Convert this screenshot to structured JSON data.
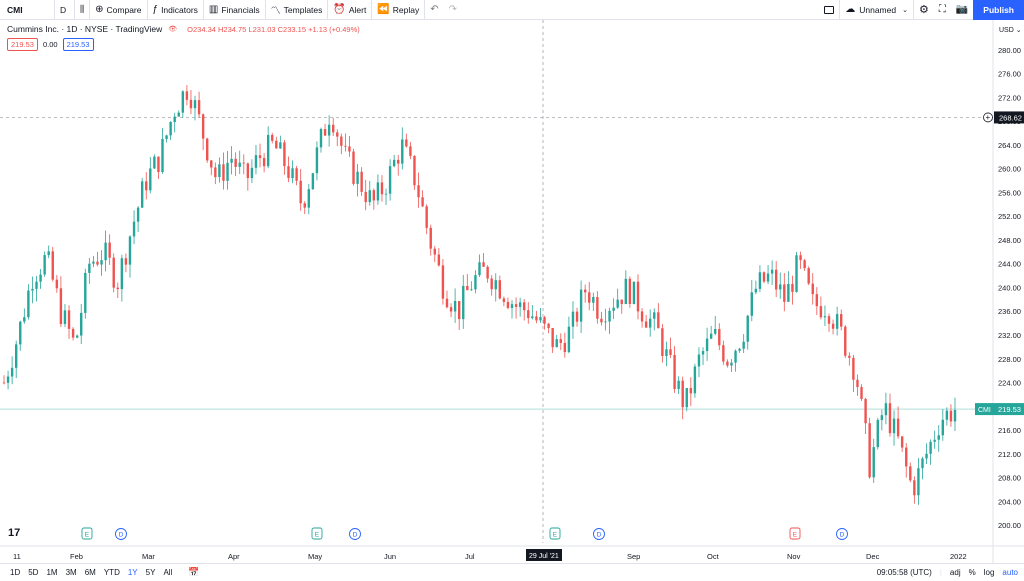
{
  "toolbar": {
    "symbol": "CMI",
    "interval": "D",
    "compare": "Compare",
    "indicators": "Indicators",
    "financials": "Financials",
    "templates": "Templates",
    "alert": "Alert",
    "replay": "Replay",
    "layout_name": "Unnamed",
    "publish": "Publish"
  },
  "legend": {
    "title": "Cummins Inc. · 1D · NYSE · TradingView",
    "ohlc": "O234.34 H234.75 L231.03 C233.15 +1.13 (+0.49%)",
    "sell_price": "219.53",
    "spread": "0.00",
    "buy_price": "219.53"
  },
  "axis": {
    "currency": "USD",
    "crosshair_price": "268.62",
    "last_price_symbol": "CMI",
    "last_price": "219.53",
    "crosshair_date": "29 Jul '21"
  },
  "bottom": {
    "ranges": [
      "1D",
      "5D",
      "1M",
      "3M",
      "6M",
      "YTD",
      "1Y",
      "5Y",
      "All"
    ],
    "active_range": "1Y",
    "clock": "09:05:58 (UTC)",
    "adj": "adj",
    "percent": "%",
    "log": "log",
    "auto": "auto"
  },
  "colors": {
    "up": "#26a69a",
    "down": "#ef5350",
    "accent": "#2962ff",
    "crosshair": "#9598a1"
  },
  "chart_data": {
    "type": "candlestick",
    "title": "Cummins Inc. · 1D · NYSE · TradingView",
    "y_ticks": [
      200,
      204,
      208,
      212,
      216,
      220,
      224,
      228,
      232,
      236,
      240,
      244,
      248,
      252,
      256,
      260,
      264,
      268,
      272,
      276,
      280
    ],
    "ylim": [
      198,
      283
    ],
    "x_labels": [
      "11",
      "Feb",
      "Mar",
      "Apr",
      "May",
      "Jun",
      "Jul",
      "Sep",
      "Oct",
      "Nov",
      "Dec",
      "2022"
    ],
    "events": [
      {
        "type": "E",
        "kind": "earnings-up"
      },
      {
        "type": "D",
        "kind": "dividend"
      },
      {
        "type": "E",
        "kind": "earnings-up"
      },
      {
        "type": "D",
        "kind": "dividend"
      },
      {
        "type": "E",
        "kind": "earnings-up"
      },
      {
        "type": "D",
        "kind": "dividend"
      },
      {
        "type": "E",
        "kind": "earnings-down"
      },
      {
        "type": "D",
        "kind": "dividend"
      }
    ],
    "close_path": [
      {
        "label": "Jan 11",
        "close": 224
      },
      {
        "label": "Jan 15",
        "close": 232
      },
      {
        "label": "Jan 20",
        "close": 242
      },
      {
        "label": "Jan 25",
        "close": 245
      },
      {
        "label": "Feb 1",
        "close": 236
      },
      {
        "label": "Feb 5",
        "close": 230
      },
      {
        "label": "Feb 10",
        "close": 244
      },
      {
        "label": "Feb 16",
        "close": 246
      },
      {
        "label": "Feb 22",
        "close": 241
      },
      {
        "label": "Mar 1",
        "close": 250
      },
      {
        "label": "Mar 5",
        "close": 258
      },
      {
        "label": "Mar 10",
        "close": 262
      },
      {
        "label": "Mar 15",
        "close": 270
      },
      {
        "label": "Mar 19",
        "close": 274
      },
      {
        "label": "Mar 24",
        "close": 266
      },
      {
        "label": "Mar 29",
        "close": 258
      },
      {
        "label": "Apr 5",
        "close": 262
      },
      {
        "label": "Apr 12",
        "close": 258
      },
      {
        "label": "Apr 19",
        "close": 262
      },
      {
        "label": "Apr 26",
        "close": 264
      },
      {
        "label": "May 3",
        "close": 260
      },
      {
        "label": "May 7",
        "close": 254
      },
      {
        "label": "May 11",
        "close": 262
      },
      {
        "label": "May 14",
        "close": 270
      },
      {
        "label": "May 19",
        "close": 262
      },
      {
        "label": "May 24",
        "close": 258
      },
      {
        "label": "May 28",
        "close": 254
      },
      {
        "label": "Jun 2",
        "close": 258
      },
      {
        "label": "Jun 8",
        "close": 264
      },
      {
        "label": "Jun 14",
        "close": 258
      },
      {
        "label": "Jun 18",
        "close": 248
      },
      {
        "label": "Jun 22",
        "close": 240
      },
      {
        "label": "Jun 28",
        "close": 236
      },
      {
        "label": "Jul 2",
        "close": 241
      },
      {
        "label": "Jul 8",
        "close": 243
      },
      {
        "label": "Jul 14",
        "close": 240
      },
      {
        "label": "Jul 20",
        "close": 237
      },
      {
        "label": "Jul 26",
        "close": 236
      },
      {
        "label": "Aug 2",
        "close": 233
      },
      {
        "label": "Aug 9",
        "close": 230
      },
      {
        "label": "Aug 16",
        "close": 233
      },
      {
        "label": "Aug 20",
        "close": 240
      },
      {
        "label": "Aug 26",
        "close": 236
      },
      {
        "label": "Sep 1",
        "close": 238
      },
      {
        "label": "Sep 8",
        "close": 240
      },
      {
        "label": "Sep 14",
        "close": 236
      },
      {
        "label": "Sep 20",
        "close": 233
      },
      {
        "label": "Sep 24",
        "close": 226
      },
      {
        "label": "Sep 30",
        "close": 220
      },
      {
        "label": "Oct 5",
        "close": 228
      },
      {
        "label": "Oct 12",
        "close": 232
      },
      {
        "label": "Oct 18",
        "close": 228
      },
      {
        "label": "Oct 22",
        "close": 232
      },
      {
        "label": "Oct 28",
        "close": 240
      },
      {
        "label": "Nov 3",
        "close": 242
      },
      {
        "label": "Nov 8",
        "close": 238
      },
      {
        "label": "Nov 12",
        "close": 244
      },
      {
        "label": "Nov 17",
        "close": 237
      },
      {
        "label": "Nov 23",
        "close": 237
      },
      {
        "label": "Nov 29",
        "close": 232
      },
      {
        "label": "Dec 3",
        "close": 226
      },
      {
        "label": "Dec 8",
        "close": 210
      },
      {
        "label": "Dec 13",
        "close": 220
      },
      {
        "label": "Dec 17",
        "close": 214
      },
      {
        "label": "Dec 21",
        "close": 206
      },
      {
        "label": "Dec 27",
        "close": 212
      },
      {
        "label": "Dec 31",
        "close": 218
      },
      {
        "label": "Jan 3",
        "close": 219.53
      }
    ]
  }
}
